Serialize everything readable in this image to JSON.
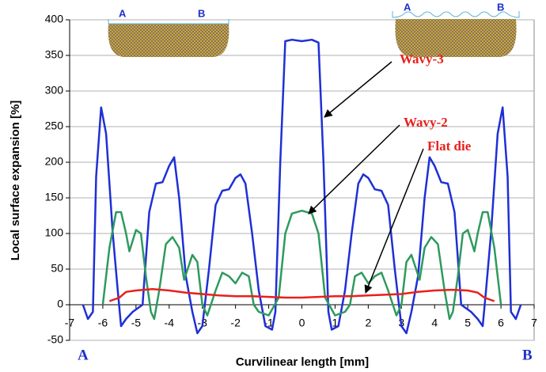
{
  "chart_data": {
    "type": "line",
    "x_label": "Curvilinear length [mm]",
    "y_label": "Local surface expansion [%]",
    "annotations": [
      "Wavy-3",
      "Wavy-2",
      "Flat die"
    ],
    "end_labels": [
      "A",
      "B"
    ],
    "inset_labels": [
      "A",
      "B",
      "A",
      "B"
    ],
    "xlim": [
      -7,
      7
    ],
    "xticks": [
      -7,
      -6,
      -5,
      -4,
      -3,
      -2,
      -1,
      0,
      1,
      2,
      3,
      4,
      5,
      6,
      7
    ],
    "ylim": [
      -50,
      400
    ],
    "yticks": [
      -50,
      0,
      50,
      100,
      150,
      200,
      250,
      300,
      350,
      400
    ],
    "grid": true,
    "series": [
      {
        "color": "#1f2fd6",
        "x": [
          -6.6,
          -6.45,
          -6.3,
          -6.2,
          -6.05,
          -5.9,
          -5.7,
          -5.55,
          -5.45,
          -5.3,
          -5.1,
          -4.8,
          -4.6,
          -4.4,
          -4.2,
          -4.0,
          -3.85,
          -3.7,
          -3.5,
          -3.3,
          -3.15,
          -3.0,
          -2.8,
          -2.6,
          -2.4,
          -2.2,
          -2.0,
          -1.85,
          -1.7,
          -1.5,
          -1.3,
          -1.1,
          -0.9,
          -0.8,
          -0.65,
          -0.5,
          -0.3,
          0,
          0.3,
          0.5,
          0.65,
          0.8,
          0.9,
          1.1,
          1.3,
          1.5,
          1.7,
          1.85,
          2.0,
          2.2,
          2.4,
          2.6,
          2.8,
          3.0,
          3.15,
          3.3,
          3.5,
          3.7,
          3.85,
          4.0,
          4.2,
          4.4,
          4.6,
          4.8,
          5.1,
          5.3,
          5.45,
          5.55,
          5.7,
          5.9,
          6.05,
          6.2,
          6.3,
          6.45,
          6.6
        ],
        "values": [
          0,
          -20,
          -10,
          180,
          277,
          240,
          100,
          20,
          -30,
          -20,
          -10,
          0,
          130,
          170,
          172,
          195,
          207,
          150,
          40,
          -10,
          -40,
          -30,
          50,
          140,
          160,
          162,
          178,
          183,
          170,
          100,
          20,
          -30,
          -35,
          -10,
          200,
          370,
          372,
          370,
          372,
          368,
          200,
          -10,
          -35,
          -30,
          20,
          100,
          170,
          183,
          178,
          162,
          160,
          140,
          50,
          -30,
          -40,
          -10,
          40,
          150,
          207,
          195,
          172,
          170,
          130,
          0,
          -10,
          -20,
          -30,
          20,
          100,
          240,
          277,
          180,
          -10,
          -20,
          0
        ]
      },
      {
        "color": "#2e9a5e",
        "x": [
          -6.0,
          -5.8,
          -5.6,
          -5.45,
          -5.3,
          -5.2,
          -5.0,
          -4.85,
          -4.7,
          -4.55,
          -4.45,
          -4.3,
          -4.1,
          -3.9,
          -3.7,
          -3.55,
          -3.3,
          -3.15,
          -3.0,
          -2.85,
          -2.6,
          -2.4,
          -2.2,
          -2.0,
          -1.8,
          -1.6,
          -1.45,
          -1.3,
          -1.0,
          -0.7,
          -0.5,
          -0.3,
          0,
          0.3,
          0.5,
          0.7,
          1.0,
          1.3,
          1.45,
          1.6,
          1.8,
          2.0,
          2.2,
          2.4,
          2.6,
          2.85,
          3.0,
          3.15,
          3.3,
          3.55,
          3.7,
          3.9,
          4.1,
          4.3,
          4.45,
          4.55,
          4.7,
          4.85,
          5.0,
          5.2,
          5.3,
          5.45,
          5.6,
          5.8,
          6.0
        ],
        "values": [
          0,
          80,
          130,
          130,
          100,
          75,
          105,
          100,
          40,
          -10,
          -20,
          20,
          85,
          95,
          80,
          35,
          70,
          60,
          0,
          -15,
          20,
          45,
          40,
          30,
          45,
          40,
          0,
          -10,
          -15,
          10,
          100,
          128,
          132,
          128,
          100,
          10,
          -15,
          -10,
          0,
          40,
          45,
          30,
          40,
          45,
          20,
          -15,
          0,
          60,
          70,
          35,
          80,
          95,
          85,
          20,
          -20,
          -10,
          40,
          100,
          105,
          75,
          100,
          130,
          130,
          80,
          0
        ]
      },
      {
        "color": "#e8201c",
        "x": [
          -5.8,
          -5.5,
          -5.3,
          -5,
          -4.5,
          -4,
          -3.5,
          -3,
          -2.5,
          -2,
          -1.5,
          -1,
          -0.5,
          0,
          0.5,
          1,
          1.5,
          2,
          2.5,
          3,
          3.5,
          4,
          4.5,
          5,
          5.3,
          5.5,
          5.8
        ],
        "values": [
          5,
          10,
          18,
          20,
          22,
          20,
          17,
          15,
          13,
          12,
          12,
          11,
          10,
          10,
          11,
          12,
          12,
          13,
          14,
          15,
          18,
          20,
          21,
          20,
          17,
          10,
          5
        ]
      }
    ]
  }
}
